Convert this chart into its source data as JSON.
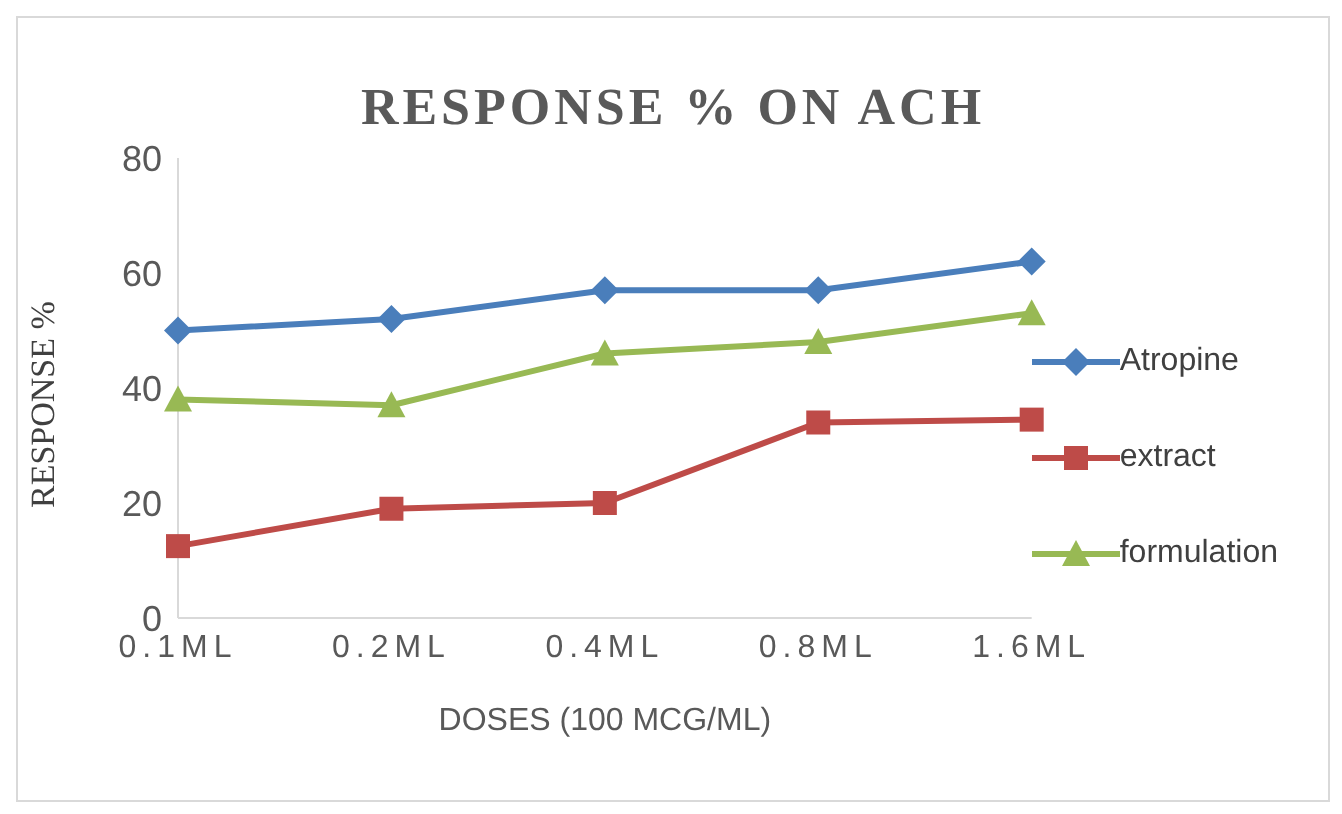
{
  "chart_data": {
    "type": "line",
    "title": "RESPONSE % ON ACH",
    "xlabel": "DOSES (100 MCG/ML)",
    "ylabel": "RESPONSE %",
    "categories": [
      "0.1ML",
      "0.2ML",
      "0.4ML",
      "0.8ML",
      "1.6ML"
    ],
    "series": [
      {
        "name": "Atropine",
        "color": "#4a7ebb",
        "marker": "diamond",
        "values": [
          50,
          52,
          57,
          57,
          62
        ]
      },
      {
        "name": "extract",
        "color": "#be4b48",
        "marker": "square",
        "values": [
          12.5,
          19,
          20,
          34,
          34.5
        ]
      },
      {
        "name": "formulation",
        "color": "#98b954",
        "marker": "triangle",
        "values": [
          38,
          37,
          46,
          48,
          53
        ]
      }
    ],
    "ylim": [
      0,
      80
    ],
    "yticks": [
      0,
      20,
      40,
      60,
      80
    ],
    "grid": false,
    "legend": "right"
  }
}
